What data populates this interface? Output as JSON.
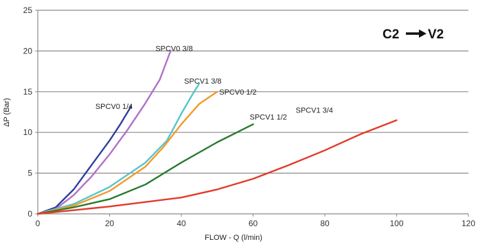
{
  "chart_data": {
    "type": "line",
    "title": "",
    "xlabel": "FLOW - Q (l/min)",
    "ylabel": "ΔP (Bar)",
    "xlim": [
      0,
      120
    ],
    "ylim": [
      0,
      25
    ],
    "x_ticks": [
      0,
      20,
      40,
      60,
      80,
      100,
      120
    ],
    "y_ticks": [
      0,
      5,
      10,
      15,
      20,
      25
    ],
    "grid": "horizontal",
    "annotation": {
      "from": "C2",
      "arrow": "→",
      "to": "V2",
      "text": "C2→V2"
    },
    "series": [
      {
        "name": "SPCV0 1/4",
        "color": "#2e3f9e",
        "points": [
          [
            0,
            0
          ],
          [
            5,
            0.8
          ],
          [
            10,
            3.0
          ],
          [
            15,
            6.0
          ],
          [
            20,
            9.0
          ],
          [
            23,
            11.0
          ],
          [
            26,
            13.2
          ]
        ]
      },
      {
        "name": "SPCV0 3/8",
        "color": "#b070c8",
        "points": [
          [
            0,
            0
          ],
          [
            5,
            0.6
          ],
          [
            10,
            2.3
          ],
          [
            15,
            4.6
          ],
          [
            20,
            7.3
          ],
          [
            25,
            10.3
          ],
          [
            30,
            13.6
          ],
          [
            34,
            16.5
          ],
          [
            37,
            20.0
          ]
        ]
      },
      {
        "name": "SPCV1 3/8",
        "color": "#57c4cc",
        "points": [
          [
            0,
            0
          ],
          [
            10,
            1.2
          ],
          [
            20,
            3.3
          ],
          [
            30,
            6.3
          ],
          [
            36,
            9.0
          ],
          [
            40,
            12.3
          ],
          [
            43,
            14.6
          ],
          [
            45,
            16.0
          ]
        ]
      },
      {
        "name": "SPCV0 1/2",
        "color": "#f39a2a",
        "points": [
          [
            0,
            0
          ],
          [
            10,
            1.0
          ],
          [
            20,
            2.8
          ],
          [
            30,
            5.8
          ],
          [
            35,
            8.2
          ],
          [
            40,
            11.0
          ],
          [
            45,
            13.5
          ],
          [
            50,
            15.0
          ]
        ]
      },
      {
        "name": "SPCV1 1/2",
        "color": "#2a7a2e",
        "points": [
          [
            0,
            0
          ],
          [
            10,
            0.8
          ],
          [
            20,
            1.8
          ],
          [
            30,
            3.6
          ],
          [
            40,
            6.3
          ],
          [
            50,
            8.8
          ],
          [
            60,
            11.0
          ]
        ]
      },
      {
        "name": "SPCV1 3/4",
        "color": "#e23a2a",
        "points": [
          [
            0,
            0
          ],
          [
            20,
            0.9
          ],
          [
            40,
            2.0
          ],
          [
            50,
            3.0
          ],
          [
            60,
            4.3
          ],
          [
            70,
            6.0
          ],
          [
            80,
            7.8
          ],
          [
            90,
            9.8
          ],
          [
            100,
            11.5
          ]
        ]
      }
    ]
  }
}
